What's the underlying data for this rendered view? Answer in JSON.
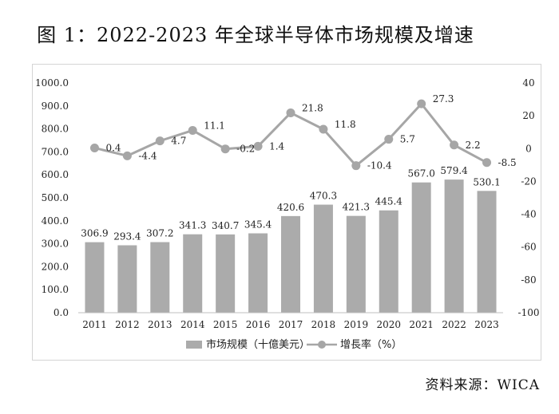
{
  "title": "图 1：2022-2023 年全球半导体市场规模及增速",
  "source": "资料来源：WICA",
  "colors": {
    "bar": "#ababab",
    "line": "#a6a6a6",
    "marker": "#a6a6a6"
  },
  "chart_data": {
    "type": "bar",
    "categories": [
      "2011",
      "2012",
      "2013",
      "2014",
      "2015",
      "2016",
      "2017",
      "2018",
      "2019",
      "2020",
      "2021",
      "2022",
      "2023"
    ],
    "series": [
      {
        "name": "市场规模（十億美元）",
        "type": "bar",
        "axis": "left",
        "values": [
          306.9,
          293.4,
          307.2,
          341.3,
          340.7,
          345.4,
          420.6,
          470.3,
          421.3,
          445.4,
          567.0,
          579.4,
          530.1
        ],
        "labels": [
          "306.9",
          "293.4",
          "307.2",
          "341.3",
          "340.7",
          "345.4",
          "420.6",
          "470.3",
          "421.3",
          "445.4",
          "567.0",
          "579.4",
          "530.1"
        ]
      },
      {
        "name": "增長率（%）",
        "type": "line",
        "axis": "right",
        "values": [
          0.4,
          -4.4,
          4.7,
          11.1,
          -0.2,
          1.4,
          21.8,
          11.8,
          -10.4,
          5.7,
          27.3,
          2.2,
          -8.5
        ],
        "labels": [
          "0.4",
          "-4.4",
          "4.7",
          "11.1",
          "-0.2",
          "1.4",
          "21.8",
          "11.8",
          "-10.4",
          "5.7",
          "27.3",
          "2.2",
          "-8.5"
        ]
      }
    ],
    "y_left": {
      "ylim": [
        0,
        1000
      ],
      "ticks": [
        "0.0",
        "100.0",
        "200.0",
        "300.0",
        "400.0",
        "500.0",
        "600.0",
        "700.0",
        "800.0",
        "900.0",
        "1000.0"
      ]
    },
    "y_right": {
      "ylim": [
        -100,
        40
      ],
      "ticks": [
        "-100",
        "-80",
        "-60",
        "-40",
        "-20",
        "0",
        "20",
        "40"
      ]
    },
    "grid": false,
    "legend": "bottom"
  }
}
